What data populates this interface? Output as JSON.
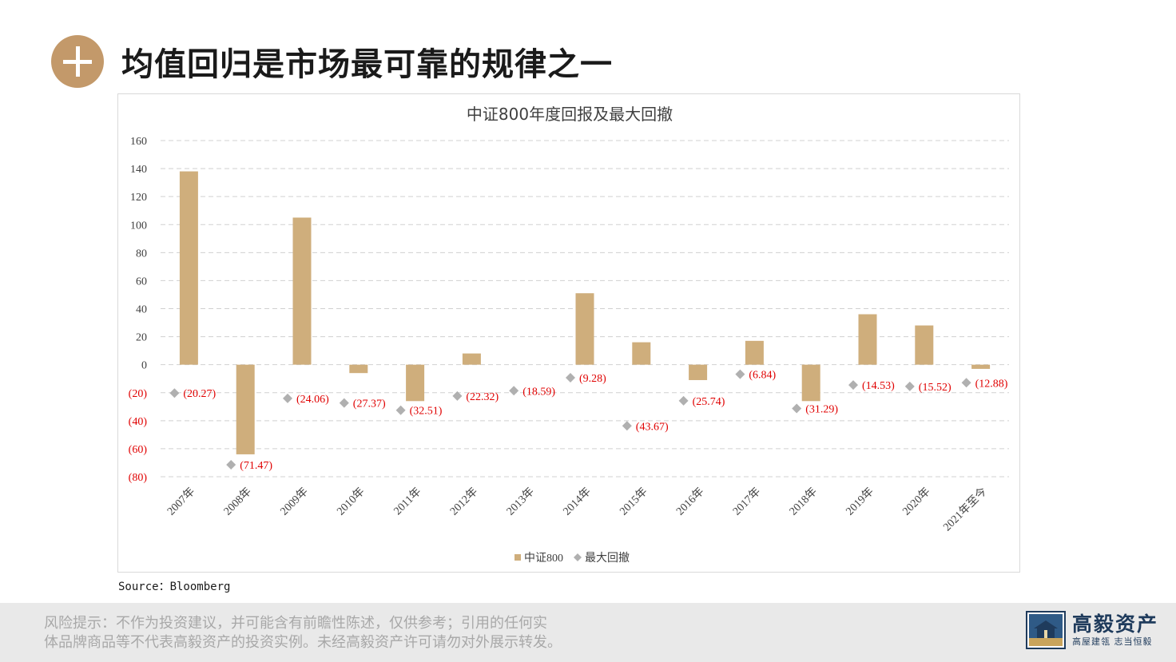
{
  "header": {
    "title": "均值回归是市场最可靠的规律之一"
  },
  "source": "Source：Bloomberg",
  "footer": {
    "risk_line1": "风险提示：不作为投资建议，并可能含有前瞻性陈述，仅供参考；引用的任何实",
    "risk_line2": "体品牌商品等不代表高毅资产的投资实例。未经高毅资产许可请勿对外展示转发。",
    "brand_name": "高毅资产",
    "brand_slogan": "高屋建瓴 志当恒毅"
  },
  "colors": {
    "bar": "#cfae7c",
    "marker": "#b0b0b0",
    "label_red": "#e00000",
    "accent": "#c3996a"
  },
  "chart_data": {
    "type": "bar",
    "title": "中证800年度回报及最大回撤",
    "categories": [
      "2007年",
      "2008年",
      "2009年",
      "2010年",
      "2011年",
      "2012年",
      "2013年",
      "2014年",
      "2015年",
      "2016年",
      "2017年",
      "2018年",
      "2019年",
      "2020年",
      "2021年至今"
    ],
    "series": [
      {
        "name": "中证800",
        "type": "bar",
        "values": [
          138,
          -64,
          105,
          -6,
          -26,
          8,
          0,
          51,
          16,
          -11,
          17,
          -26,
          36,
          28,
          -3
        ]
      },
      {
        "name": "最大回撤",
        "type": "scatter",
        "values": [
          -20.27,
          -71.47,
          -24.06,
          -27.37,
          -32.51,
          -22.32,
          -18.59,
          -9.28,
          -43.67,
          -25.74,
          -6.84,
          -31.29,
          -14.53,
          -15.52,
          -12.88
        ],
        "labels": [
          "(20.27)",
          "(71.47)",
          "(24.06)",
          "(27.37)",
          "(32.51)",
          "(22.32)",
          "(18.59)",
          "(9.28)",
          "(43.67)",
          "(25.74)",
          "(6.84)",
          "(31.29)",
          "(14.53)",
          "(15.52)",
          "(12.88)"
        ]
      }
    ],
    "y_ticks": [
      160,
      140,
      120,
      100,
      80,
      60,
      40,
      20,
      0,
      -20,
      -40,
      -60,
      -80
    ],
    "y_tick_labels": [
      "160",
      "140",
      "120",
      "100",
      "80",
      "60",
      "40",
      "20",
      "0",
      "(20)",
      "(40)",
      "(60)",
      "(80)"
    ],
    "ylim": [
      -80,
      160
    ],
    "grid": true,
    "legend_position": "bottom"
  }
}
